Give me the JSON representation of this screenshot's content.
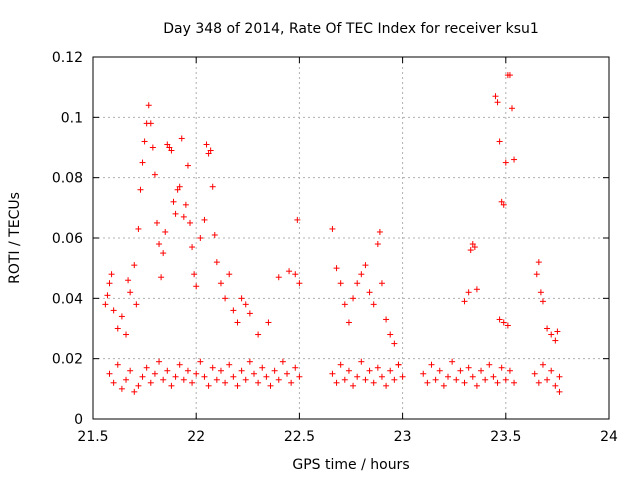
{
  "chart_data": {
    "type": "scatter",
    "title": "Day 348 of 2014, Rate Of TEC Index for receiver ksu1",
    "xlabel": "GPS time / hours",
    "ylabel": "ROTI / TECUs",
    "xlim": [
      21.5,
      24
    ],
    "ylim": [
      0,
      0.12
    ],
    "x_ticks": [
      21.5,
      22,
      22.5,
      23,
      23.5,
      24
    ],
    "x_tick_labels": [
      "21.5",
      "22",
      "22.5",
      "23",
      "23.5",
      "24"
    ],
    "y_ticks": [
      0,
      0.02,
      0.04,
      0.06,
      0.08,
      0.1,
      0.12
    ],
    "y_tick_labels": [
      "0",
      "0.02",
      "0.04",
      "0.06",
      "0.08",
      "0.1",
      "0.12"
    ],
    "grid": true,
    "marker": "plus",
    "color": "#ff0000",
    "series": [
      {
        "name": "ROTI",
        "points": [
          [
            21.56,
            0.038
          ],
          [
            21.57,
            0.041
          ],
          [
            21.58,
            0.045
          ],
          [
            21.59,
            0.048
          ],
          [
            21.6,
            0.036
          ],
          [
            21.62,
            0.03
          ],
          [
            21.64,
            0.034
          ],
          [
            21.66,
            0.028
          ],
          [
            21.67,
            0.046
          ],
          [
            21.68,
            0.042
          ],
          [
            21.7,
            0.051
          ],
          [
            21.71,
            0.038
          ],
          [
            21.72,
            0.063
          ],
          [
            21.73,
            0.076
          ],
          [
            21.74,
            0.085
          ],
          [
            21.75,
            0.092
          ],
          [
            21.76,
            0.098
          ],
          [
            21.77,
            0.104
          ],
          [
            21.78,
            0.098
          ],
          [
            21.79,
            0.09
          ],
          [
            21.8,
            0.081
          ],
          [
            21.81,
            0.065
          ],
          [
            21.82,
            0.058
          ],
          [
            21.83,
            0.047
          ],
          [
            21.84,
            0.055
          ],
          [
            21.85,
            0.062
          ],
          [
            21.86,
            0.091
          ],
          [
            21.87,
            0.09
          ],
          [
            21.88,
            0.089
          ],
          [
            21.89,
            0.072
          ],
          [
            21.9,
            0.068
          ],
          [
            21.91,
            0.076
          ],
          [
            21.92,
            0.077
          ],
          [
            21.93,
            0.093
          ],
          [
            21.94,
            0.067
          ],
          [
            21.95,
            0.071
          ],
          [
            21.96,
            0.084
          ],
          [
            21.97,
            0.065
          ],
          [
            21.98,
            0.057
          ],
          [
            21.99,
            0.048
          ],
          [
            22.0,
            0.044
          ],
          [
            22.02,
            0.06
          ],
          [
            22.04,
            0.066
          ],
          [
            22.05,
            0.091
          ],
          [
            22.06,
            0.088
          ],
          [
            22.07,
            0.089
          ],
          [
            22.08,
            0.077
          ],
          [
            22.09,
            0.061
          ],
          [
            22.1,
            0.052
          ],
          [
            22.12,
            0.045
          ],
          [
            22.14,
            0.04
          ],
          [
            22.16,
            0.048
          ],
          [
            22.18,
            0.036
          ],
          [
            22.2,
            0.032
          ],
          [
            22.22,
            0.04
          ],
          [
            22.24,
            0.038
          ],
          [
            22.26,
            0.035
          ],
          [
            22.3,
            0.028
          ],
          [
            22.35,
            0.032
          ],
          [
            22.4,
            0.047
          ],
          [
            22.45,
            0.049
          ],
          [
            22.48,
            0.048
          ],
          [
            22.49,
            0.066
          ],
          [
            22.5,
            0.045
          ],
          [
            22.66,
            0.063
          ],
          [
            22.68,
            0.05
          ],
          [
            22.7,
            0.045
          ],
          [
            22.72,
            0.038
          ],
          [
            22.74,
            0.032
          ],
          [
            22.76,
            0.04
          ],
          [
            22.78,
            0.045
          ],
          [
            22.8,
            0.048
          ],
          [
            22.82,
            0.051
          ],
          [
            22.84,
            0.042
          ],
          [
            22.86,
            0.038
          ],
          [
            22.88,
            0.058
          ],
          [
            22.89,
            0.062
          ],
          [
            22.9,
            0.045
          ],
          [
            22.92,
            0.033
          ],
          [
            22.94,
            0.028
          ],
          [
            22.96,
            0.025
          ],
          [
            22.98,
            0.018
          ],
          [
            23.3,
            0.039
          ],
          [
            23.32,
            0.042
          ],
          [
            23.33,
            0.056
          ],
          [
            23.34,
            0.058
          ],
          [
            23.35,
            0.057
          ],
          [
            23.36,
            0.043
          ],
          [
            23.45,
            0.107
          ],
          [
            23.46,
            0.105
          ],
          [
            23.47,
            0.092
          ],
          [
            23.48,
            0.072
          ],
          [
            23.49,
            0.071
          ],
          [
            23.5,
            0.085
          ],
          [
            23.51,
            0.114
          ],
          [
            23.52,
            0.114
          ],
          [
            23.53,
            0.103
          ],
          [
            23.54,
            0.086
          ],
          [
            23.47,
            0.033
          ],
          [
            23.49,
            0.032
          ],
          [
            23.51,
            0.031
          ],
          [
            23.65,
            0.048
          ],
          [
            23.66,
            0.052
          ],
          [
            23.67,
            0.042
          ],
          [
            23.68,
            0.039
          ],
          [
            23.7,
            0.03
          ],
          [
            23.72,
            0.028
          ],
          [
            23.74,
            0.026
          ],
          [
            23.75,
            0.029
          ],
          [
            23.76,
            0.009
          ],
          [
            21.58,
            0.015
          ],
          [
            21.6,
            0.012
          ],
          [
            21.62,
            0.018
          ],
          [
            21.64,
            0.01
          ],
          [
            21.66,
            0.013
          ],
          [
            21.68,
            0.016
          ],
          [
            21.7,
            0.009
          ],
          [
            21.72,
            0.011
          ],
          [
            21.74,
            0.014
          ],
          [
            21.76,
            0.017
          ],
          [
            21.78,
            0.012
          ],
          [
            21.8,
            0.015
          ],
          [
            21.82,
            0.019
          ],
          [
            21.84,
            0.013
          ],
          [
            21.86,
            0.016
          ],
          [
            21.88,
            0.011
          ],
          [
            21.9,
            0.014
          ],
          [
            21.92,
            0.018
          ],
          [
            21.94,
            0.013
          ],
          [
            21.96,
            0.016
          ],
          [
            21.98,
            0.012
          ],
          [
            22.0,
            0.015
          ],
          [
            22.02,
            0.019
          ],
          [
            22.04,
            0.014
          ],
          [
            22.06,
            0.011
          ],
          [
            22.08,
            0.017
          ],
          [
            22.1,
            0.013
          ],
          [
            22.12,
            0.016
          ],
          [
            22.14,
            0.012
          ],
          [
            22.16,
            0.018
          ],
          [
            22.18,
            0.014
          ],
          [
            22.2,
            0.011
          ],
          [
            22.22,
            0.016
          ],
          [
            22.24,
            0.013
          ],
          [
            22.26,
            0.019
          ],
          [
            22.28,
            0.015
          ],
          [
            22.3,
            0.012
          ],
          [
            22.32,
            0.017
          ],
          [
            22.34,
            0.014
          ],
          [
            22.36,
            0.011
          ],
          [
            22.38,
            0.016
          ],
          [
            22.4,
            0.013
          ],
          [
            22.42,
            0.019
          ],
          [
            22.44,
            0.015
          ],
          [
            22.46,
            0.012
          ],
          [
            22.48,
            0.017
          ],
          [
            22.5,
            0.014
          ],
          [
            22.66,
            0.015
          ],
          [
            22.68,
            0.012
          ],
          [
            22.7,
            0.018
          ],
          [
            22.72,
            0.013
          ],
          [
            22.74,
            0.016
          ],
          [
            22.76,
            0.011
          ],
          [
            22.78,
            0.014
          ],
          [
            22.8,
            0.019
          ],
          [
            22.82,
            0.013
          ],
          [
            22.84,
            0.016
          ],
          [
            22.86,
            0.012
          ],
          [
            22.88,
            0.017
          ],
          [
            22.9,
            0.014
          ],
          [
            22.92,
            0.011
          ],
          [
            22.94,
            0.016
          ],
          [
            22.96,
            0.013
          ],
          [
            22.98,
            0.018
          ],
          [
            23.0,
            0.014
          ],
          [
            23.1,
            0.015
          ],
          [
            23.12,
            0.012
          ],
          [
            23.14,
            0.018
          ],
          [
            23.16,
            0.013
          ],
          [
            23.18,
            0.016
          ],
          [
            23.2,
            0.011
          ],
          [
            23.22,
            0.014
          ],
          [
            23.24,
            0.019
          ],
          [
            23.26,
            0.013
          ],
          [
            23.28,
            0.016
          ],
          [
            23.3,
            0.012
          ],
          [
            23.32,
            0.017
          ],
          [
            23.34,
            0.014
          ],
          [
            23.36,
            0.011
          ],
          [
            23.38,
            0.016
          ],
          [
            23.4,
            0.013
          ],
          [
            23.42,
            0.018
          ],
          [
            23.44,
            0.014
          ],
          [
            23.46,
            0.012
          ],
          [
            23.48,
            0.017
          ],
          [
            23.5,
            0.013
          ],
          [
            23.52,
            0.016
          ],
          [
            23.54,
            0.012
          ],
          [
            23.64,
            0.015
          ],
          [
            23.66,
            0.012
          ],
          [
            23.68,
            0.018
          ],
          [
            23.7,
            0.013
          ],
          [
            23.72,
            0.016
          ],
          [
            23.74,
            0.011
          ],
          [
            23.76,
            0.014
          ]
        ]
      }
    ]
  }
}
